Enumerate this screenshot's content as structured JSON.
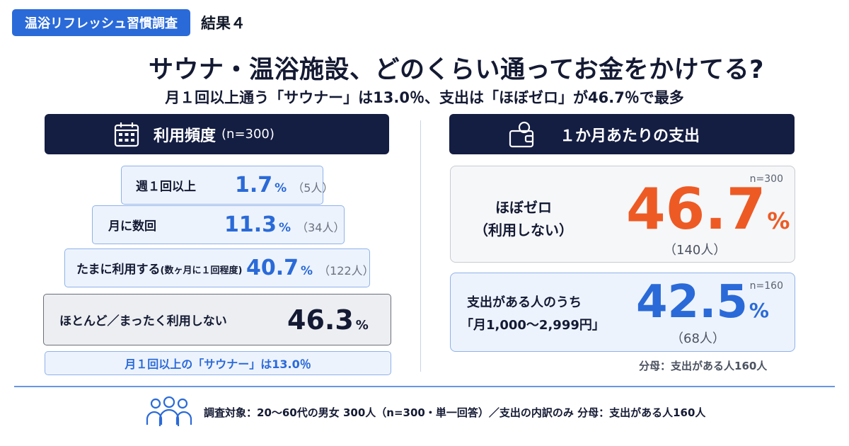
{
  "header": {
    "tag": "温浴リフレッシュ習慣調査",
    "result": "結果４",
    "title": "サウナ・温浴施設、どのくらい通ってお金をかけてる?",
    "subtitle": "月１回以上通う「サウナー」は13.0％、支出は「ほぼゼロ」が46.7％で最多"
  },
  "left_panel": {
    "heading": "利用頻度",
    "n": "(n=300)",
    "icon": "calendar-icon",
    "tiers": [
      {
        "label": "週１回以上",
        "note": "",
        "value": "1.7",
        "unit": "%",
        "count": "（5人）"
      },
      {
        "label": "月に数回",
        "note": "",
        "value": "11.3",
        "unit": "%",
        "count": "（34人）"
      },
      {
        "label": "たまに利用する",
        "note": "(数ヶ月に１回程度)",
        "value": "40.7",
        "unit": "%",
        "count": "（122人）"
      },
      {
        "label": "ほとんど／まったく利用しない",
        "note": "",
        "value": "46.3",
        "unit": "%",
        "count": ""
      }
    ],
    "summary": "月１回以上の「サウナー」は13.0％"
  },
  "right_panel": {
    "heading": "１か月あたりの支出",
    "icon": "wallet-icon",
    "cards": [
      {
        "n": "n=300",
        "label_line1": "ほぼゼロ",
        "label_line2": "（利用しない）",
        "value": "46.7",
        "unit": "%",
        "count": "（140人）",
        "color": "#ee5a24"
      },
      {
        "n": "n=160",
        "label_line1": "支出がある人のうち",
        "label_line2": "「月1,000〜2,999円」",
        "value": "42.5",
        "unit": "%",
        "count": "（68人）",
        "color": "#2a6ad8"
      }
    ],
    "denominator": "分母：支出がある人160人"
  },
  "footer": {
    "icon": "people-icon",
    "text": "調査対象：20〜60代の男女 300人（n=300・単一回答）／支出の内訳のみ 分母：支出がある人160人"
  },
  "chart_data": [
    {
      "type": "bar",
      "title": "利用頻度",
      "categories": [
        "週１回以上",
        "月に数回",
        "たまに利用する",
        "ほとんど／まったく利用しない"
      ],
      "values": [
        1.7,
        11.3,
        40.7,
        46.3
      ],
      "counts": [
        5,
        34,
        122,
        null
      ],
      "unit": "%",
      "n": 300
    },
    {
      "type": "table",
      "title": "１か月あたりの支出",
      "rows": [
        {
          "category": "ほぼゼロ（利用しない）",
          "value": 46.7,
          "unit": "%",
          "count": 140,
          "n": 300
        },
        {
          "category": "支出がある人のうち「月1,000〜2,999円」",
          "value": 42.5,
          "unit": "%",
          "count": 68,
          "n": 160
        }
      ]
    }
  ],
  "colors": {
    "brand_blue": "#2a6ad8",
    "navy": "#141d42",
    "orange": "#ee5a24"
  }
}
